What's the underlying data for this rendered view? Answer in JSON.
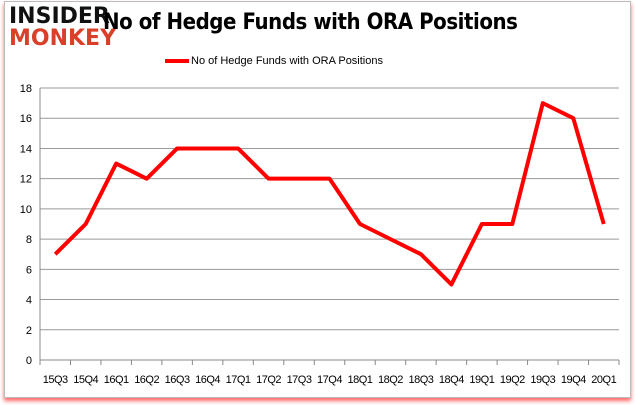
{
  "logo": {
    "line1": "INSIDER",
    "line2": "MONKEY"
  },
  "chart_data": {
    "type": "line",
    "title": "No of Hedge Funds with ORA Positions",
    "xlabel": "",
    "ylabel": "",
    "categories": [
      "15Q3",
      "15Q4",
      "16Q1",
      "16Q2",
      "16Q3",
      "16Q4",
      "17Q1",
      "17Q2",
      "17Q3",
      "17Q4",
      "18Q1",
      "18Q2",
      "18Q3",
      "18Q4",
      "19Q1",
      "19Q2",
      "19Q3",
      "19Q4",
      "20Q1"
    ],
    "series": [
      {
        "name": "No of Hedge Funds with ORA Positions",
        "color": "#ff0000",
        "values": [
          7,
          9,
          13,
          12,
          14,
          14,
          14,
          12,
          12,
          12,
          9,
          8,
          7,
          5,
          9,
          9,
          17,
          16,
          9
        ]
      }
    ],
    "ylim": [
      0,
      18
    ],
    "yticks": [
      0,
      2,
      4,
      6,
      8,
      10,
      12,
      14,
      16,
      18
    ],
    "grid": true,
    "legend_position": "top"
  }
}
